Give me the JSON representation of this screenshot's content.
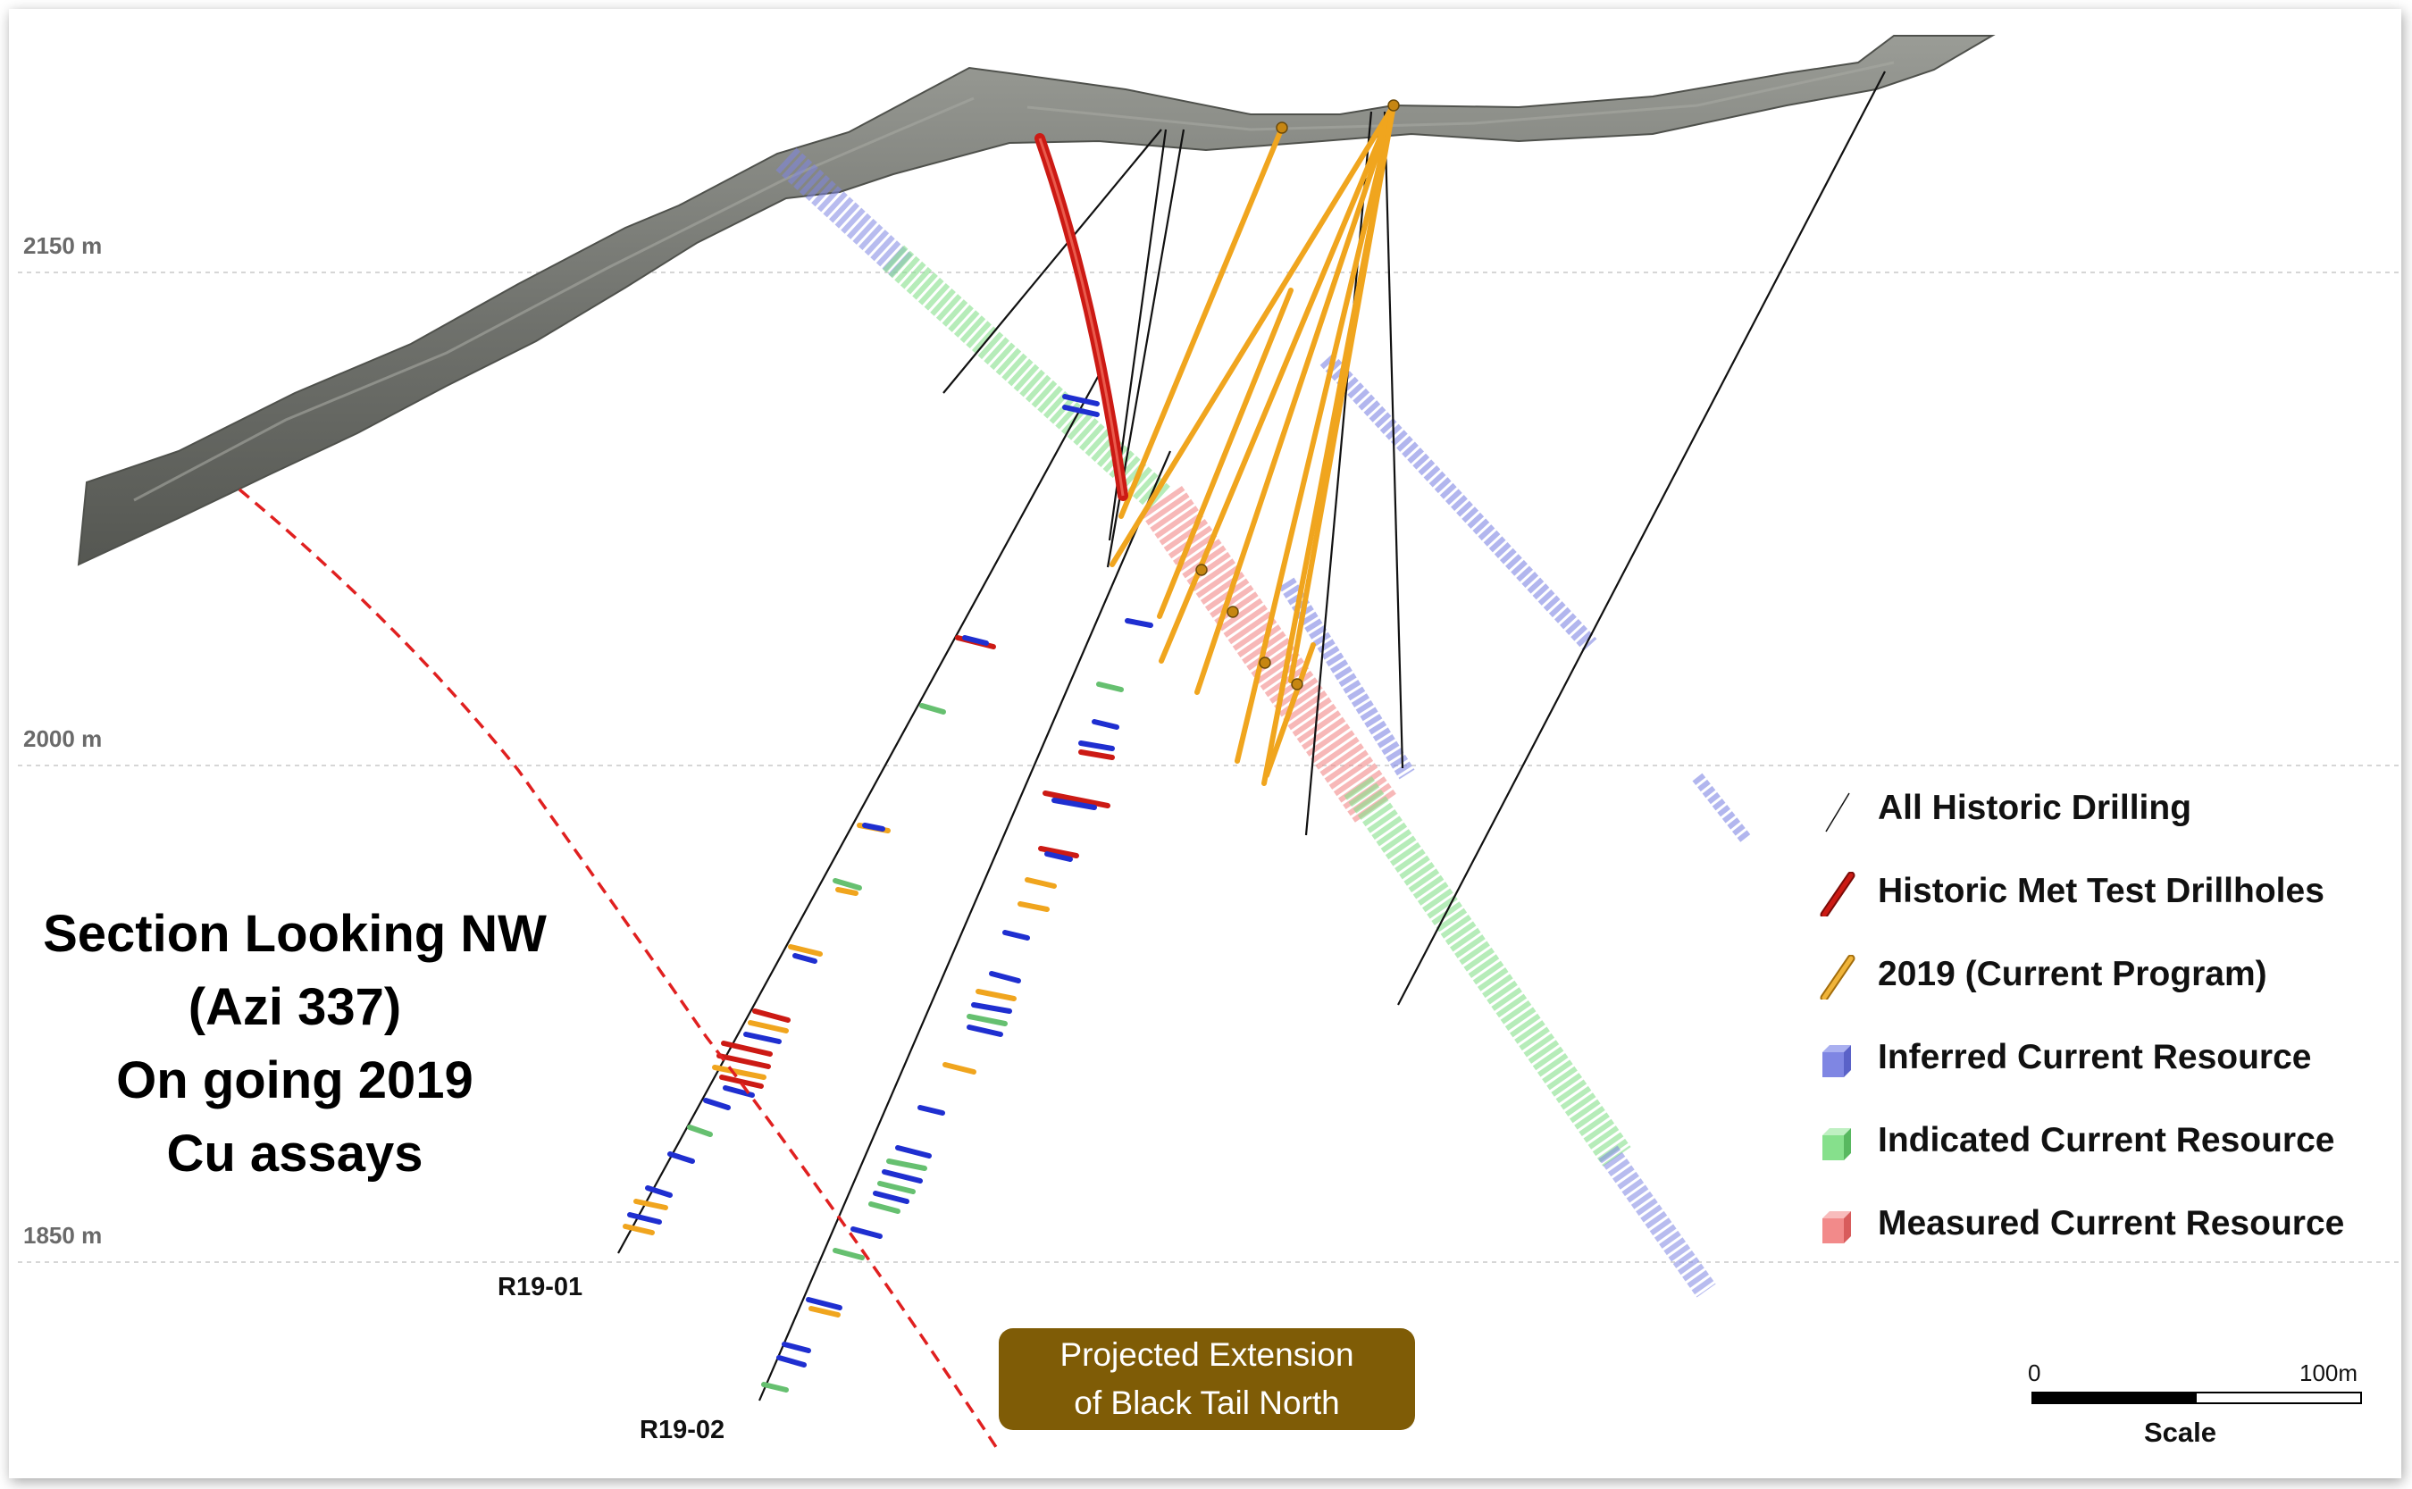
{
  "elevation_labels": [
    "2150 m",
    "2000 m",
    "1850 m"
  ],
  "drillhole_labels": [
    "R19-01",
    "R19-02"
  ],
  "section_title": [
    "Section Looking NW",
    "(Azi 337)",
    "On going 2019",
    "Cu assays"
  ],
  "extension_box": [
    "Projected Extension",
    "of Black Tail North"
  ],
  "legend": [
    {
      "label": "All Historic Drilling",
      "symbol": "thin-black-line",
      "color": "#111111"
    },
    {
      "label": "Historic Met Test Drillholes",
      "symbol": "red-cylinder",
      "color": "#cc1a14"
    },
    {
      "label": "2019 (Current Program)",
      "symbol": "orange-cylinder",
      "color": "#f0a51e"
    },
    {
      "label": "Inferred Current Resource",
      "symbol": "blue-cube",
      "color": "#7f86e3"
    },
    {
      "label": "Indicated Current Resource",
      "symbol": "green-cube",
      "color": "#86e08c"
    },
    {
      "label": "Measured Current Resource",
      "symbol": "red-cube",
      "color": "#f28a8a"
    }
  ],
  "scale": {
    "start": "0",
    "end": "100m",
    "caption": "Scale"
  },
  "colors": {
    "topography": "#7b7d78",
    "extension_box": "#7f5c06",
    "projected_line": "#e02020"
  }
}
